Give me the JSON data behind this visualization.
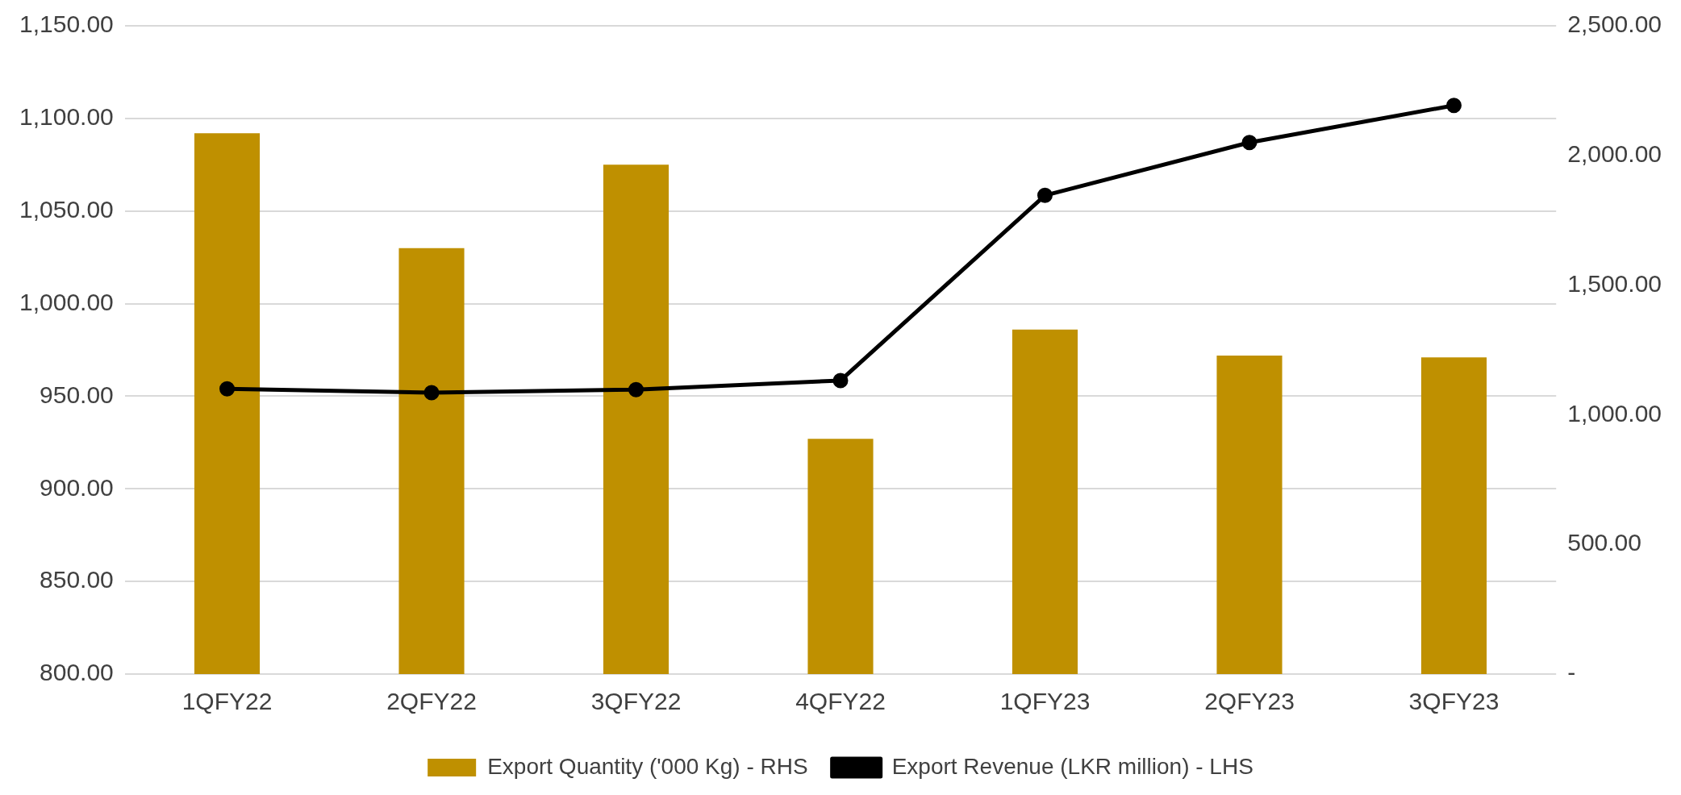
{
  "chart_data": {
    "type": "bar",
    "categories": [
      "1QFY22",
      "2QFY22",
      "3QFY22",
      "4QFY22",
      "1QFY23",
      "2QFY23",
      "3QFY23"
    ],
    "series": [
      {
        "name": "Export Quantity ('000 Kg) - RHS",
        "color": "#bf9000",
        "values": [
          1092,
          1030,
          1075,
          927,
          986,
          972,
          971
        ]
      },
      {
        "name": "Export Revenue (LKR million) - LHS",
        "type": "line",
        "axis": "y2",
        "color": "#000000",
        "marker": "circle",
        "line_style": "solid",
        "values": [
          1100,
          1085,
          1097,
          1132,
          1846,
          2050,
          2193
        ]
      }
    ],
    "ylim": [
      800,
      1150
    ],
    "yticks": [
      {
        "value": 800,
        "label": "800.00"
      },
      {
        "value": 850,
        "label": "850.00"
      },
      {
        "value": 900,
        "label": "900.00"
      },
      {
        "value": 950,
        "label": "950.00"
      },
      {
        "value": 1000,
        "label": "1,000.00"
      },
      {
        "value": 1050,
        "label": "1,050.00"
      },
      {
        "value": 1100,
        "label": "1,100.00"
      },
      {
        "value": 1150,
        "label": "1,150.00"
      }
    ],
    "y2lim": [
      0,
      2500
    ],
    "y2ticks": [
      {
        "value": 0,
        "label": "-"
      },
      {
        "value": 500,
        "label": "500.00"
      },
      {
        "value": 1000,
        "label": "1,000.00"
      },
      {
        "value": 1500,
        "label": "1,500.00"
      },
      {
        "value": 2000,
        "label": "2,000.00"
      },
      {
        "value": 2500,
        "label": "2,500.00"
      }
    ],
    "grid": "y",
    "legend": "bottom"
  }
}
